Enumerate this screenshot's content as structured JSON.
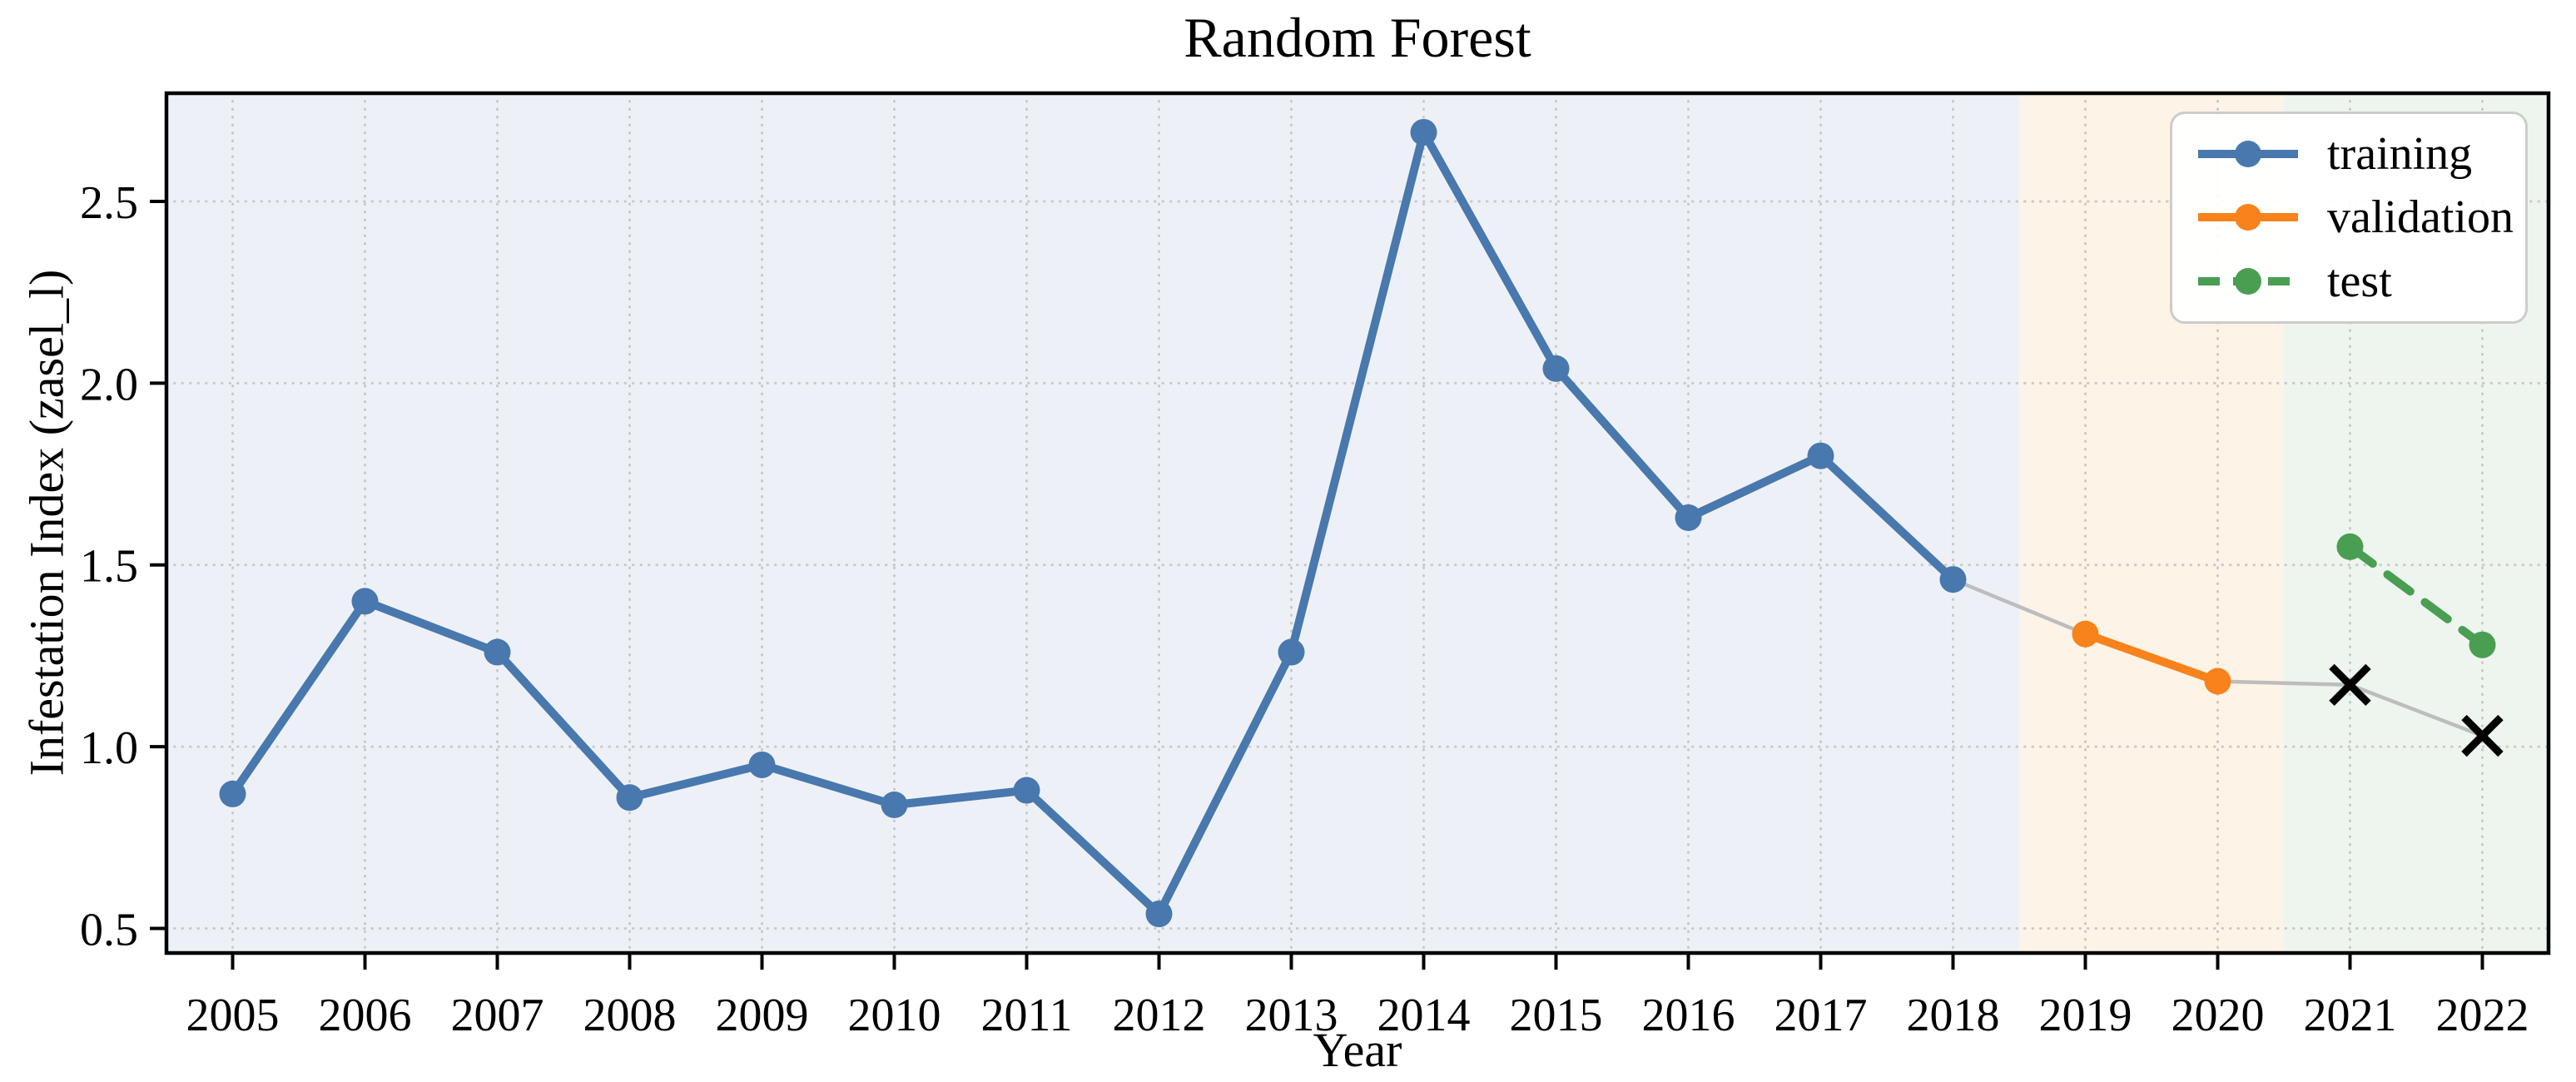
{
  "figure": {
    "title": "Random Forest"
  },
  "chart_data": {
    "type": "line",
    "title": "Random Forest",
    "xlabel": "Year",
    "ylabel": "Infestation Index (zasel_l)",
    "xlim": [
      2004.5,
      2022.5
    ],
    "ylim": [
      0.4325,
      2.7975
    ],
    "grid": "dotted",
    "grid_color": "#c9c9c9",
    "frame_color": "#000000",
    "legend_position": "upper right",
    "xtick_values": [
      2005,
      2006,
      2007,
      2008,
      2009,
      2010,
      2011,
      2012,
      2013,
      2014,
      2015,
      2016,
      2017,
      2018,
      2019,
      2020,
      2021,
      2022
    ],
    "xtick_labels": [
      "2005",
      "2006",
      "2007",
      "2008",
      "2009",
      "2010",
      "2011",
      "2012",
      "2013",
      "2014",
      "2015",
      "2016",
      "2017",
      "2018",
      "2019",
      "2020",
      "2021",
      "2022"
    ],
    "ytick_values": [
      0.5,
      1.0,
      1.5,
      2.0,
      2.5
    ],
    "ytick_labels": [
      "0.5",
      "1.0",
      "1.5",
      "2.0",
      "2.5"
    ],
    "bands": [
      {
        "name": "training-period",
        "from": 2004.5,
        "to": 2018.5,
        "color": "#edf1f7"
      },
      {
        "name": "validation-period",
        "from": 2018.5,
        "to": 2020.5,
        "color": "#fdf3e7"
      },
      {
        "name": "test-period",
        "from": 2020.5,
        "to": 2022.5,
        "color": "#eef5ee"
      }
    ],
    "series": [
      {
        "name": "training",
        "color": "#4878ad",
        "line": "solid",
        "marker": "circle",
        "x": [
          2005,
          2006,
          2007,
          2008,
          2009,
          2010,
          2011,
          2012,
          2013,
          2014,
          2015,
          2016,
          2017,
          2018
        ],
        "values": [
          0.87,
          1.4,
          1.26,
          0.86,
          0.95,
          0.84,
          0.88,
          0.54,
          1.26,
          2.69,
          2.04,
          1.63,
          1.8,
          1.46
        ]
      },
      {
        "name": "validation",
        "color": "#f8821b",
        "line": "solid",
        "marker": "circle",
        "x": [
          2019,
          2020
        ],
        "values": [
          1.31,
          1.18
        ]
      },
      {
        "name": "test",
        "color": "#4a9e52",
        "line": "dashed",
        "marker": "circle",
        "x": [
          2021,
          2022
        ],
        "values": [
          1.55,
          1.28
        ]
      }
    ],
    "observed": {
      "connector_color": "#bdbdbd",
      "segments": [
        {
          "x": [
            2018,
            2019
          ],
          "values": [
            1.46,
            1.31
          ]
        },
        {
          "x": [
            2020,
            2021,
            2022
          ],
          "values": [
            1.18,
            1.17,
            1.03
          ]
        }
      ],
      "x_markers": {
        "marker": "x",
        "color": "#000000",
        "x": [
          2021,
          2022
        ],
        "values": [
          1.17,
          1.03
        ]
      }
    }
  }
}
